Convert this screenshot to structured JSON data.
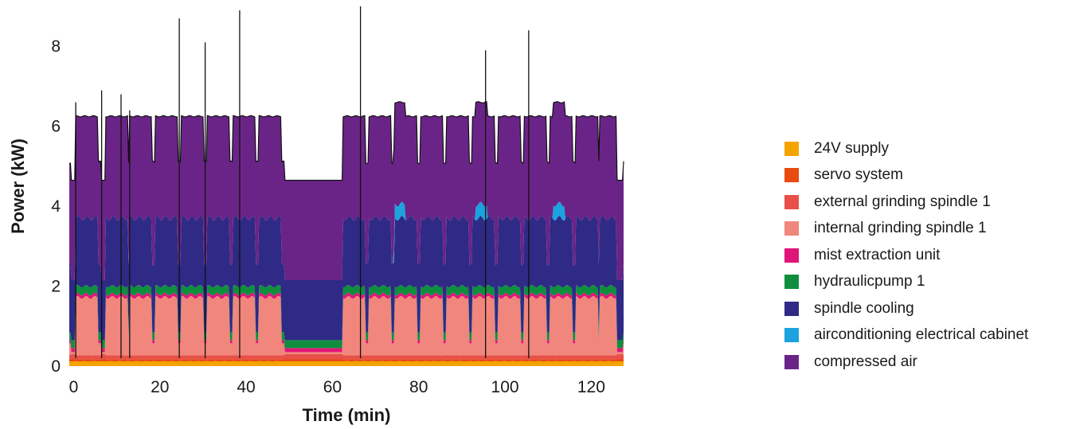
{
  "chart_data": {
    "type": "area",
    "stacked": true,
    "xlabel": "Time (min)",
    "ylabel": "Power (kW)",
    "xlim": [
      -1,
      127.5
    ],
    "ylim": [
      0,
      9
    ],
    "xticks": [
      0,
      20,
      40,
      60,
      80,
      100,
      120
    ],
    "yticks": [
      0,
      2,
      4,
      6,
      8
    ],
    "grid": false,
    "legend_position": "right",
    "idle_periods": [
      [
        -0.5,
        0.5
      ],
      [
        6.5,
        7.5
      ],
      [
        49,
        62.5
      ],
      [
        126,
        127.5
      ]
    ],
    "cycle_starts": [
      0.5,
      7.5,
      13,
      19,
      25,
      31,
      37,
      43,
      62.5,
      68.5,
      74.5,
      80.5,
      86.5,
      92.5,
      98.5,
      104.5,
      110.5,
      116.5,
      122
    ],
    "transient_peaks": [
      {
        "x": 0.5,
        "y": 6.6
      },
      {
        "x": 6.5,
        "y": 6.9
      },
      {
        "x": 11,
        "y": 6.8
      },
      {
        "x": 13,
        "y": 6.4
      },
      {
        "x": 24.5,
        "y": 8.7
      },
      {
        "x": 30.5,
        "y": 8.1
      },
      {
        "x": 38.5,
        "y": 8.9
      },
      {
        "x": 66.5,
        "y": 9.0
      },
      {
        "x": 95.5,
        "y": 7.9
      },
      {
        "x": 105.5,
        "y": 8.4
      }
    ],
    "series": [
      {
        "name": "24V supply",
        "color": "#f5a300",
        "active": 0.12,
        "idle": 0.12
      },
      {
        "name": "servo system",
        "color": "#e84a10",
        "active": 0.05,
        "idle": 0.05
      },
      {
        "name": "external grinding spindle 1",
        "color": "#e8504a",
        "active": 0.1,
        "idle": 0.13
      },
      {
        "name": "internal grinding spindle 1",
        "color": "#f0867c",
        "active": 1.45,
        "idle": 0.05
      },
      {
        "name": "mist extraction unit",
        "color": "#e0157a",
        "active": 0.08,
        "idle": 0.1
      },
      {
        "name": "hydraulicpump 1",
        "color": "#0f8f3e",
        "active": 0.2,
        "idle": 0.2
      },
      {
        "name": "spindle cooling",
        "color": "#2e2a85",
        "active": 1.7,
        "idle": 1.5
      },
      {
        "name": "airconditioning electrical cabinet",
        "color": "#1ba3e0",
        "active": 0.0,
        "idle": 0.0
      },
      {
        "name": "compressed air",
        "color": "#6a2487",
        "active": 2.55,
        "idle": 2.5
      }
    ]
  }
}
